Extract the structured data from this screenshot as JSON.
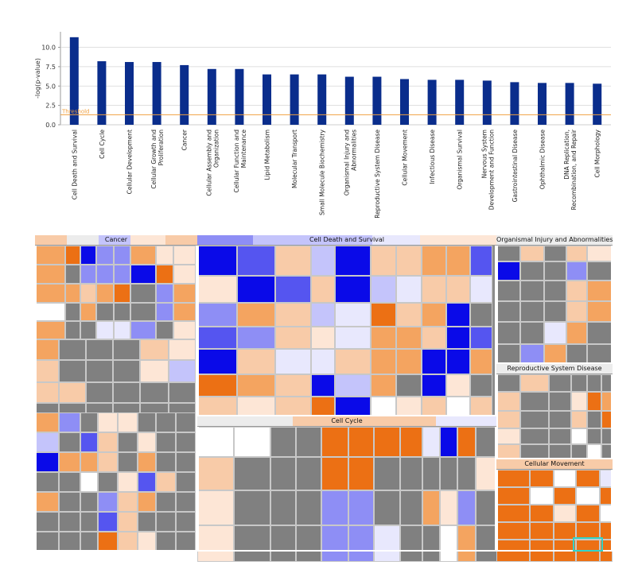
{
  "chart_data": {
    "type": "bar",
    "ylabel": "-log(p-value)",
    "ylim": [
      0,
      12
    ],
    "yticks": [
      "0.0",
      "2.5",
      "5.0",
      "7.5",
      "10.0"
    ],
    "threshold": {
      "label": "Threshold",
      "value": 1.3,
      "color": "#f0a040"
    },
    "bar_color": "#0a2d8c",
    "categories": [
      "Cell Death and Survival",
      "Cell Cycle",
      "Cellular Development",
      "Cellular Growth and Proliferation",
      "Cancer",
      "Cellular Assembly and Organization",
      "Cellular Function and Maintenance",
      "Lipid Metabolism",
      "Molecular Transport",
      "Small Molecule Biochemistry",
      "Organismal Injury and Abnormalities",
      "Reproductive System Disease",
      "Cellular Movement",
      "Infectious Disease",
      "Organismal Survival",
      "Nervous System Development and Function",
      "Gastrointestinal Disease",
      "Ophthalmic Disease",
      "DNA Replication, Recombination, and Repair",
      "Cell Morphology"
    ],
    "values": [
      11.3,
      8.2,
      8.1,
      8.1,
      7.7,
      7.2,
      7.2,
      6.5,
      6.5,
      6.5,
      6.2,
      6.2,
      5.9,
      5.8,
      5.8,
      5.7,
      5.5,
      5.4,
      5.4,
      5.3
    ]
  },
  "treemap": {
    "panels": [
      {
        "name": "Cancer"
      },
      {
        "name": "Cell Death and Survival"
      },
      {
        "name": "Organismal Injury and Abnormalities"
      },
      {
        "name": "Reproductive System Disease"
      },
      {
        "name": "Cell Cycle"
      },
      {
        "name": "Cellular Movement"
      }
    ]
  }
}
